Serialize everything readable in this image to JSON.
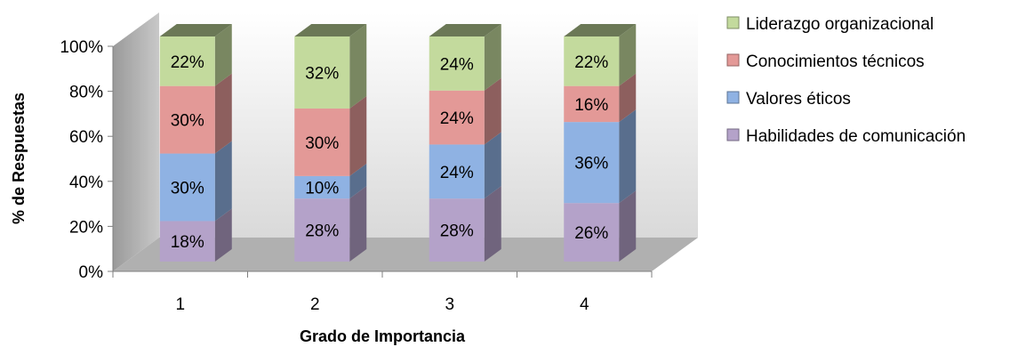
{
  "chart_data": {
    "type": "bar",
    "stacked": true,
    "three_d": true,
    "categories": [
      "1",
      "2",
      "3",
      "4"
    ],
    "series": [
      {
        "name": "Habilidades de comunicación",
        "values": [
          18,
          28,
          28,
          26
        ],
        "color": "#b4a2c9"
      },
      {
        "name": "Valores éticos",
        "values": [
          30,
          10,
          24,
          36
        ],
        "color": "#8fb2e3"
      },
      {
        "name": "Conocimientos técnicos",
        "values": [
          30,
          30,
          24,
          16
        ],
        "color": "#e39997"
      },
      {
        "name": "Liderazgo organizacional",
        "values": [
          22,
          32,
          24,
          22
        ],
        "color": "#c3da9d"
      }
    ],
    "data_labels": [
      [
        "18%",
        "28%",
        "28%",
        "26%"
      ],
      [
        "30%",
        "10%",
        "24%",
        "36%"
      ],
      [
        "30%",
        "30%",
        "24%",
        "16%"
      ],
      [
        "22%",
        "32%",
        "24%",
        "22%"
      ]
    ],
    "y_ticks": [
      "0%",
      "20%",
      "40%",
      "60%",
      "80%",
      "100%"
    ],
    "ylim": [
      0,
      100
    ],
    "xlabel": "Grado de Importancia",
    "ylabel": "% de Respuestas",
    "legend_position": "right",
    "legend_order": [
      "Liderazgo organizacional",
      "Conocimientos técnicos",
      "Valores éticos",
      "Habilidades de comunicación"
    ],
    "grid": false,
    "wall_color": "#eeeeee",
    "floor_color": "#b0b0b0"
  }
}
